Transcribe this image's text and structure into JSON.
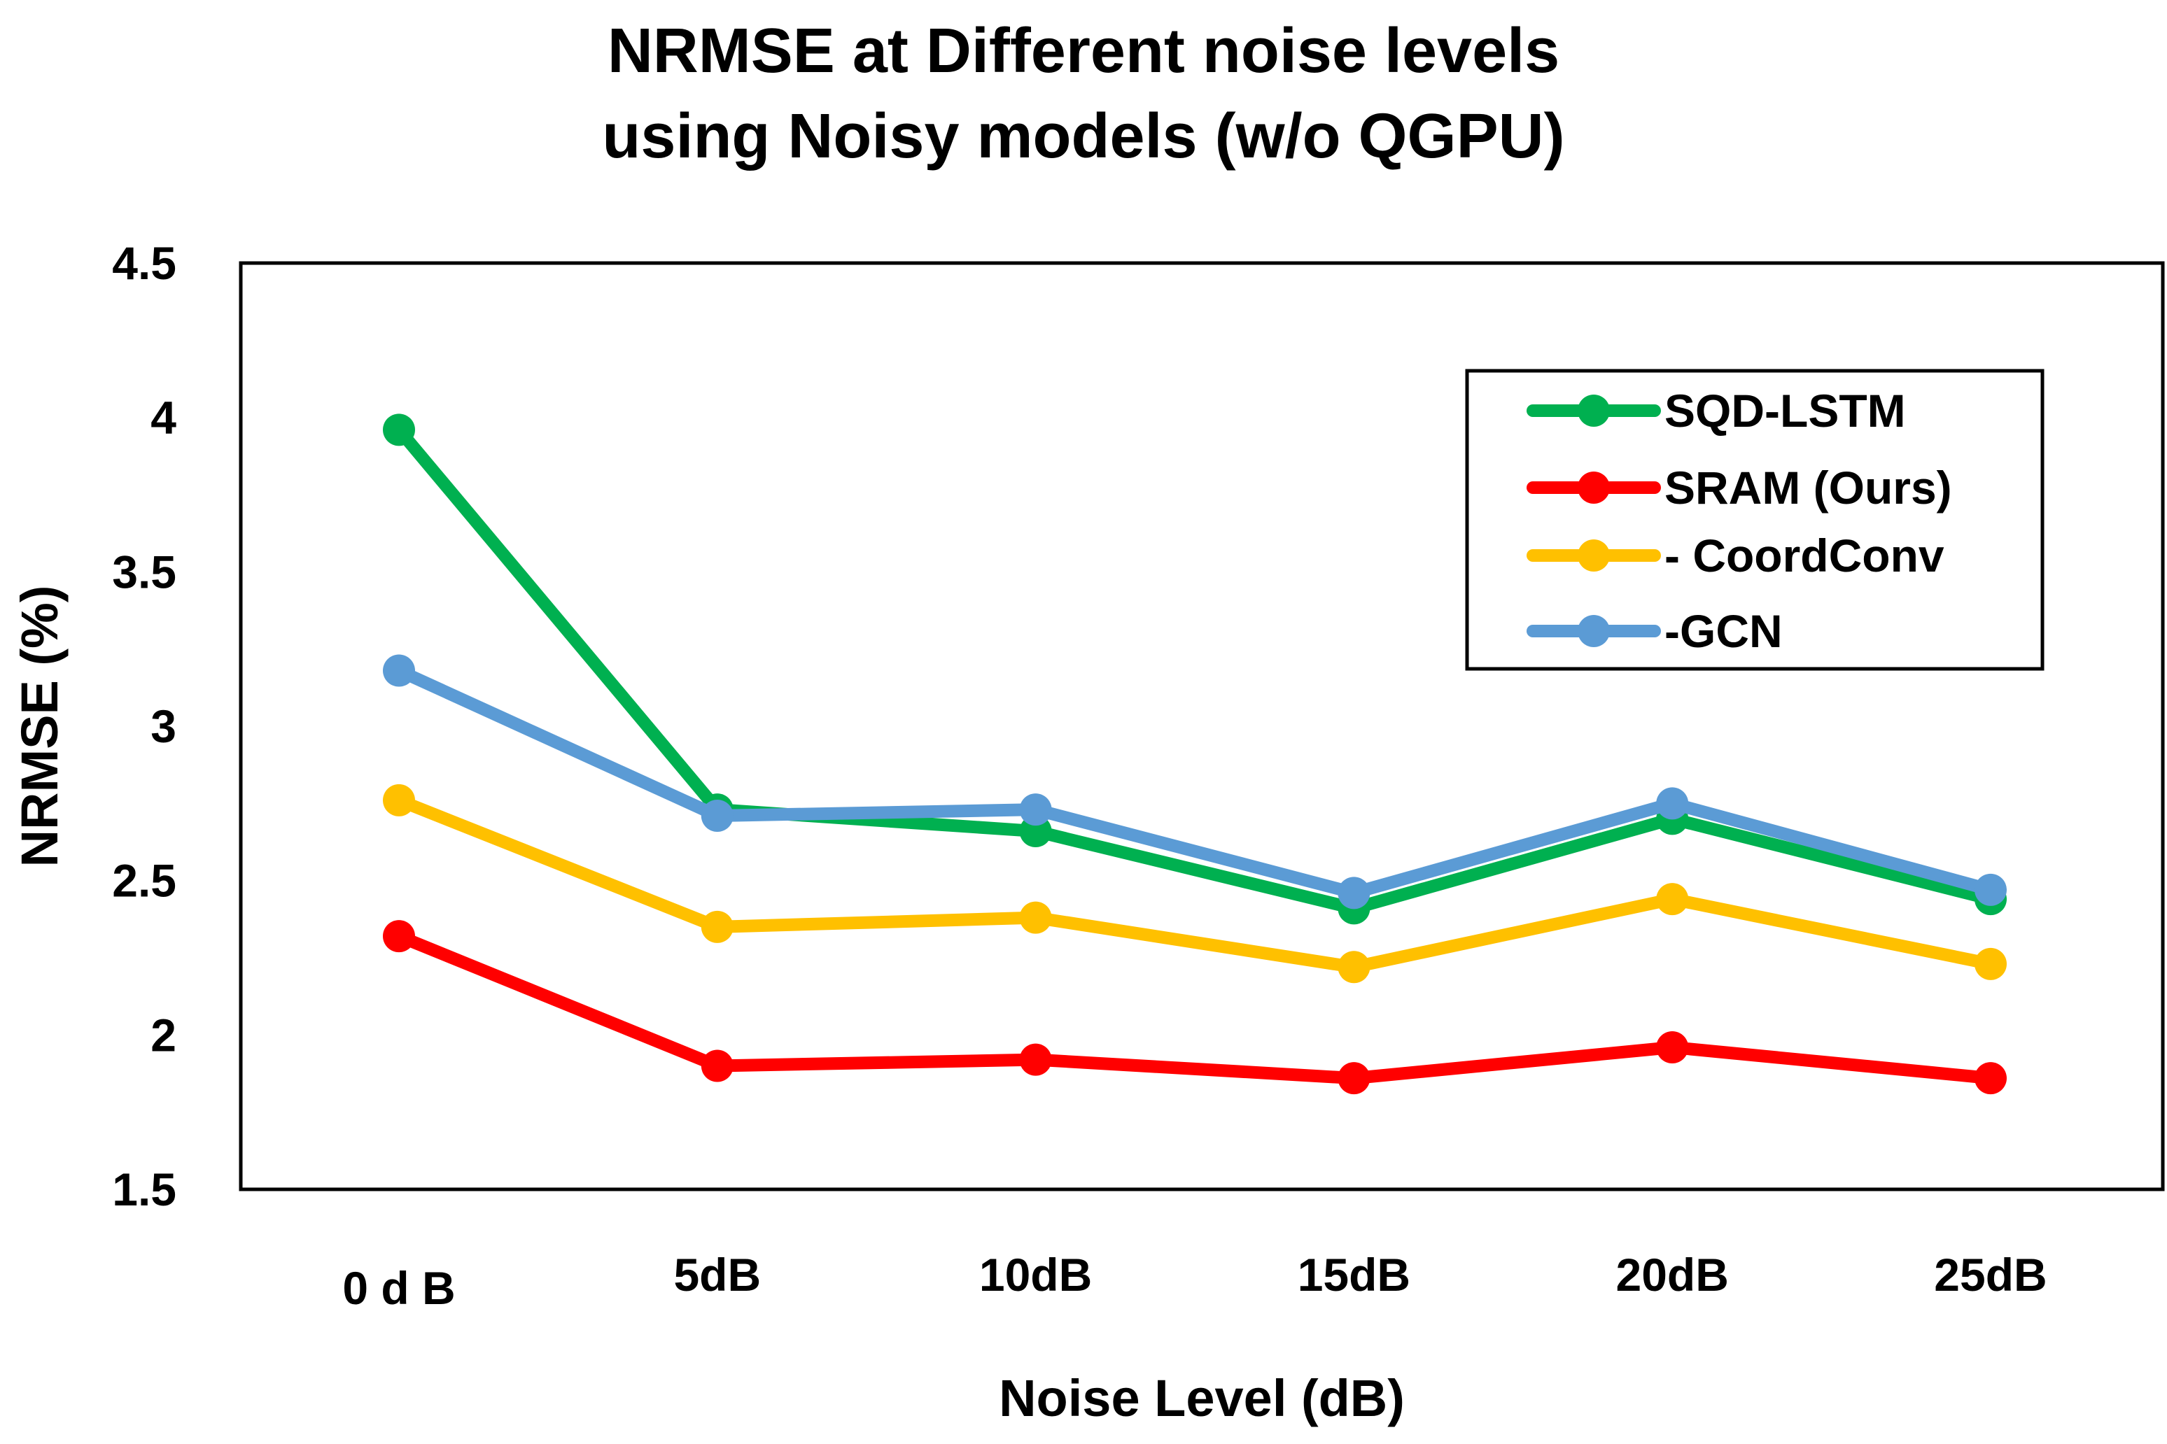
{
  "chart_data": {
    "type": "line",
    "title_line1": "NRMSE at Different noise levels",
    "title_line2": "using Noisy models (w/o QGPU)",
    "xlabel": "Noise Level (dB)",
    "ylabel": "NRMSE (%)",
    "categories": [
      "0 d B",
      "5dB",
      "10dB",
      "15dB",
      "20dB",
      "25dB"
    ],
    "ylim": [
      1.5,
      4.5
    ],
    "yticks": [
      "1.5",
      "2",
      "2.5",
      "3",
      "3.5",
      "4",
      "4.5"
    ],
    "legend_position": "top-right",
    "series": [
      {
        "name": "SQD-LSTM",
        "color": "#00B050",
        "values": [
          3.96,
          2.73,
          2.66,
          2.41,
          2.7,
          2.44
        ]
      },
      {
        "name": "SRAM (Ours)",
        "color": "#FF0000",
        "values": [
          2.32,
          1.9,
          1.92,
          1.86,
          1.96,
          1.86
        ]
      },
      {
        "name": "- CoordConv",
        "color": "#FFC000",
        "values": [
          2.76,
          2.35,
          2.38,
          2.22,
          2.44,
          2.23
        ]
      },
      {
        "name": "-GCN",
        "color": "#5B9BD5",
        "values": [
          3.18,
          2.71,
          2.73,
          2.46,
          2.75,
          2.47
        ]
      }
    ]
  }
}
